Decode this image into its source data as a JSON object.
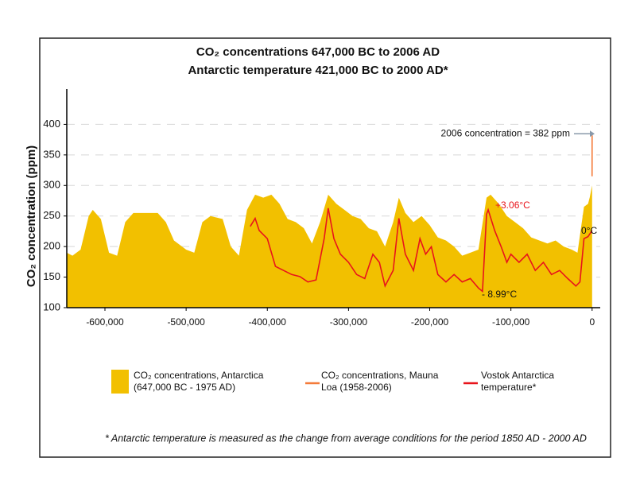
{
  "chart_data": {
    "type": "area",
    "title": [
      "CO₂ concentrations 647,000 BC to 2006 AD",
      "Antarctic temperature 421,000 BC to 2000 AD*"
    ],
    "ylabel": "CO₂ concentration (ppm)",
    "xlim": [
      -647000,
      10000
    ],
    "xticks": [
      {
        "value": -600000,
        "label": "-600,000"
      },
      {
        "value": -500000,
        "label": "-500,000"
      },
      {
        "value": -400000,
        "label": "-400,000"
      },
      {
        "value": -300000,
        "label": "-300,000"
      },
      {
        "value": -200000,
        "label": "-200,000"
      },
      {
        "value": -100000,
        "label": "-100,000"
      },
      0
    ],
    "ylim": [
      100,
      450
    ],
    "yticks": [
      100,
      150,
      200,
      250,
      300,
      350,
      400
    ],
    "y2lim": [
      -11.4,
      20.2
    ],
    "grid": true,
    "series": [
      {
        "name": "CO₂ concentrations, Antarctica (647,000 BC - 1975 AD)",
        "type": "area",
        "color": "#F2C000",
        "x": [
          -647000,
          -640000,
          -630000,
          -620000,
          -615000,
          -605000,
          -595000,
          -585000,
          -575000,
          -565000,
          -550000,
          -535000,
          -525000,
          -515000,
          -500000,
          -490000,
          -480000,
          -470000,
          -455000,
          -445000,
          -435000,
          -425000,
          -415000,
          -405000,
          -395000,
          -385000,
          -375000,
          -365000,
          -355000,
          -345000,
          -335000,
          -325000,
          -315000,
          -305000,
          -295000,
          -285000,
          -275000,
          -265000,
          -255000,
          -245000,
          -238000,
          -230000,
          -220000,
          -210000,
          -200000,
          -190000,
          -180000,
          -170000,
          -160000,
          -150000,
          -140000,
          -130000,
          -125000,
          -115000,
          -105000,
          -95000,
          -85000,
          -75000,
          -65000,
          -55000,
          -45000,
          -35000,
          -25000,
          -18000,
          -10000,
          -5000,
          -3000,
          0
        ],
        "values": [
          190,
          185,
          195,
          250,
          260,
          245,
          190,
          185,
          240,
          255,
          255,
          255,
          240,
          210,
          195,
          190,
          240,
          250,
          245,
          200,
          185,
          260,
          285,
          280,
          285,
          270,
          245,
          240,
          230,
          205,
          240,
          285,
          270,
          260,
          250,
          245,
          230,
          225,
          200,
          240,
          280,
          255,
          240,
          250,
          235,
          215,
          210,
          200,
          185,
          190,
          195,
          280,
          285,
          270,
          250,
          240,
          230,
          215,
          210,
          205,
          210,
          200,
          195,
          190,
          265,
          270,
          280,
          300
        ]
      },
      {
        "name": "CO₂ concentrations, Mauna Loa (1958-2006)",
        "type": "line",
        "color": "#F47B3A",
        "x": [
          -48,
          -30,
          -15,
          0
        ],
        "values": [
          315,
          330,
          350,
          382
        ]
      },
      {
        "name": "Vostok Antarctica temperature*",
        "type": "line",
        "color": "#E8141B",
        "axis": "y2",
        "x": [
          -421000,
          -415000,
          -410000,
          -400000,
          -390000,
          -380000,
          -370000,
          -360000,
          -350000,
          -340000,
          -330000,
          -325000,
          -318000,
          -310000,
          -300000,
          -290000,
          -280000,
          -270000,
          -262000,
          -255000,
          -245000,
          -238000,
          -230000,
          -220000,
          -212000,
          -205000,
          -198000,
          -190000,
          -180000,
          -170000,
          -160000,
          -150000,
          -140000,
          -135000,
          -130000,
          -128000,
          -120000,
          -112000,
          -105000,
          -100000,
          -90000,
          -80000,
          -70000,
          -60000,
          -50000,
          -40000,
          -30000,
          -20000,
          -15000,
          -10000,
          -5000,
          0
        ],
        "values": [
          0.6,
          1.8,
          0,
          -1.2,
          -5.3,
          -5.9,
          -6.5,
          -6.8,
          -7.6,
          -7.3,
          -1.2,
          3.3,
          -1.2,
          -3.5,
          -4.7,
          -6.5,
          -7.1,
          -3.5,
          -4.7,
          -8.2,
          -5.9,
          1.8,
          -3.5,
          -5.9,
          -1.2,
          -3.5,
          -2.4,
          -6.5,
          -7.6,
          -6.5,
          -7.6,
          -7.1,
          -8.5,
          -8.99,
          2.4,
          3.06,
          0,
          -2.4,
          -4.7,
          -3.5,
          -4.7,
          -3.5,
          -5.9,
          -4.7,
          -6.5,
          -5.9,
          -7.1,
          -8.2,
          -7.6,
          -1.2,
          -0.9,
          0
        ]
      }
    ],
    "annotations": [
      "2006 concentration = 382 ppm",
      "+3.06°C",
      "- 8.99°C",
      "0°C"
    ],
    "footnote": "* Antarctic temperature is measured as the change from average conditions for the period 1850 AD - 2000 AD"
  }
}
